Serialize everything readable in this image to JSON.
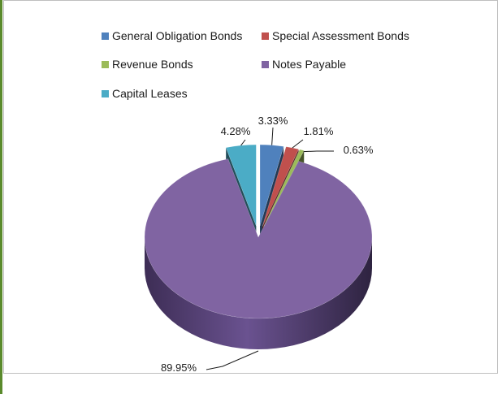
{
  "chart_data": {
    "type": "pie",
    "series": [
      {
        "name": "General Obligation Bonds",
        "value": 3.33,
        "label": "3.33%",
        "color": "#4f81bd"
      },
      {
        "name": "Special Assessment Bonds",
        "value": 1.81,
        "label": "1.81%",
        "color": "#c0504d"
      },
      {
        "name": "Revenue Bonds",
        "value": 0.63,
        "label": "0.63%",
        "color": "#9bbb59"
      },
      {
        "name": "Notes Payable",
        "value": 89.95,
        "label": "89.95%",
        "color": "#8064a2"
      },
      {
        "name": "Capital Leases",
        "value": 4.28,
        "label": "4.28%",
        "color": "#4bacc6"
      }
    ],
    "legend_position": "top",
    "style": "3d-exploded"
  }
}
